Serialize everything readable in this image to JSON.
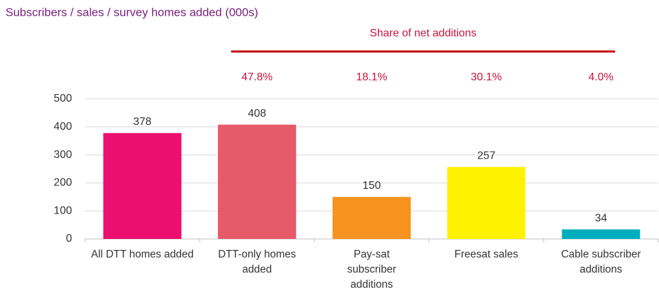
{
  "chart_data": {
    "type": "bar",
    "title": "Subscribers / sales / survey homes added (000s)",
    "categories": [
      "All DTT homes added",
      "DTT-only homes added",
      "Pay-sat subscriber additions",
      "Freesat sales",
      "Cable subscriber additions"
    ],
    "values": [
      378,
      408,
      150,
      257,
      34
    ],
    "colors": [
      "#ec0f6f",
      "#e65a69",
      "#f7931e",
      "#fff200",
      "#00aebd"
    ],
    "ylim": [
      0,
      500
    ],
    "yticks": [
      0,
      100,
      200,
      300,
      400,
      500
    ],
    "grid": true,
    "shares": {
      "title": "Share of net additions",
      "values": [
        null,
        47.8,
        18.1,
        30.1,
        4.0
      ],
      "value_labels": [
        null,
        "47.8%",
        "18.1%",
        "30.1%",
        "4.0%"
      ]
    }
  }
}
